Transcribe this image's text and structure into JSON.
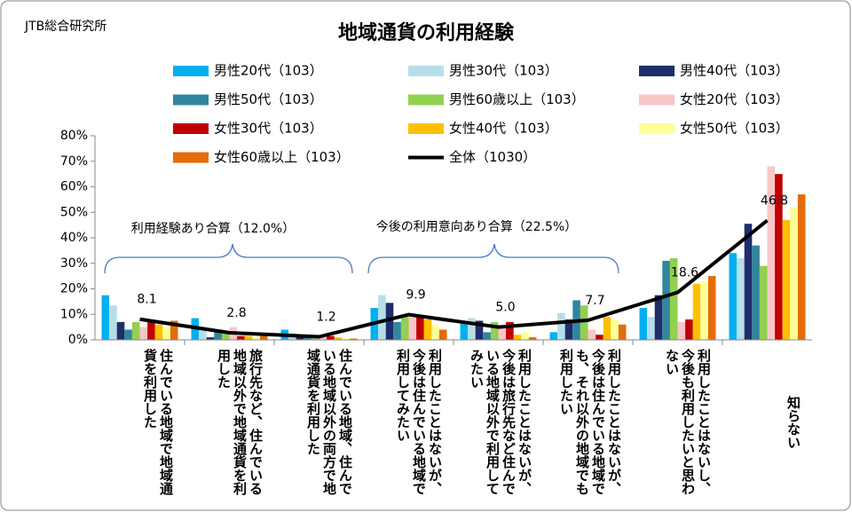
{
  "chart_data": {
    "type": "bar",
    "title": "地域通貨の利用経験",
    "source": "JTB総合研究所",
    "annotations": [
      "利用経験あり合算（12.0%）",
      "今後の利用意向あり合算（22.5%）"
    ],
    "categories": [
      "住んでいる地域で地域通貨を利用した",
      "旅行先など、住んでいる地域以外で地域通貨を利用した",
      "住んでいる地域、住んでいる地域以外の両方で地域通貨を利用した",
      "利用したことはないが、今後は住んでいる地域で利用してみたい",
      "利用したことはないが、今後は旅行先など住んでいる地域以外で利用してみたい",
      "利用したことはないが、今後は住んでいる地域でも、それ以外の地域でも利用したい",
      "利用したことはないし、今後も利用したいと思わない",
      "知らない"
    ],
    "series": [
      {
        "name": "男性20代（103）",
        "color": "#00b0f0",
        "values": [
          17.5,
          8.5,
          4,
          12.5,
          6.5,
          3,
          12.5,
          34
        ]
      },
      {
        "name": "男性30代（103）",
        "color": "#b7dee8",
        "values": [
          13.5,
          5,
          2.5,
          17.5,
          8.5,
          10.5,
          9,
          32
        ]
      },
      {
        "name": "男性40代（103）",
        "color": "#1f2d6b",
        "values": [
          7,
          1,
          1,
          14.5,
          7.5,
          8,
          17.5,
          45.5
        ]
      },
      {
        "name": "男性50代（103）",
        "color": "#31859c",
        "values": [
          4,
          3,
          1,
          7,
          3,
          15.5,
          31,
          37
        ]
      },
      {
        "name": "男性60歳以上（103）",
        "color": "#92d050",
        "values": [
          7,
          2.5,
          1,
          9,
          7,
          13.5,
          32,
          29
        ]
      },
      {
        "name": "女性20代（103）",
        "color": "#f9c6c6",
        "values": [
          5,
          5,
          1,
          9,
          5,
          4,
          7,
          68
        ]
      },
      {
        "name": "女性30代（103）",
        "color": "#c00000",
        "values": [
          7,
          1.5,
          1.5,
          9,
          7,
          2,
          8,
          65
        ]
      },
      {
        "name": "女性40代（103）",
        "color": "#ffc000",
        "values": [
          6,
          1.5,
          1,
          8,
          2,
          9,
          22,
          47
        ]
      },
      {
        "name": "女性50代（103）",
        "color": "#ffff99",
        "values": [
          5,
          1,
          0.5,
          6,
          3,
          8,
          23,
          52
        ]
      },
      {
        "name": "女性60歳以上（103）",
        "color": "#e46c0a",
        "values": [
          7.5,
          2,
          0.5,
          4,
          1,
          6,
          25,
          57
        ]
      },
      {
        "name": "全体（1030）",
        "color": "#000000",
        "type": "line",
        "values": [
          8.1,
          2.8,
          1.2,
          9.9,
          5.0,
          7.7,
          18.6,
          46.8
        ],
        "value_labels": [
          "8.1",
          "2.8",
          "1.2",
          "9.9",
          "5.0",
          "7.7",
          "18.6",
          "46.8"
        ]
      }
    ],
    "ylim": [
      0,
      80
    ],
    "yticks": [
      {
        "value": 0,
        "label": "0%"
      },
      {
        "value": 10,
        "label": "10%"
      },
      {
        "value": 20,
        "label": "20%"
      },
      {
        "value": 30,
        "label": "30%"
      },
      {
        "value": 40,
        "label": "40%"
      },
      {
        "value": 50,
        "label": "50%"
      },
      {
        "value": 60,
        "label": "60%"
      },
      {
        "value": 70,
        "label": "70%"
      },
      {
        "value": 80,
        "label": "80%"
      }
    ]
  }
}
